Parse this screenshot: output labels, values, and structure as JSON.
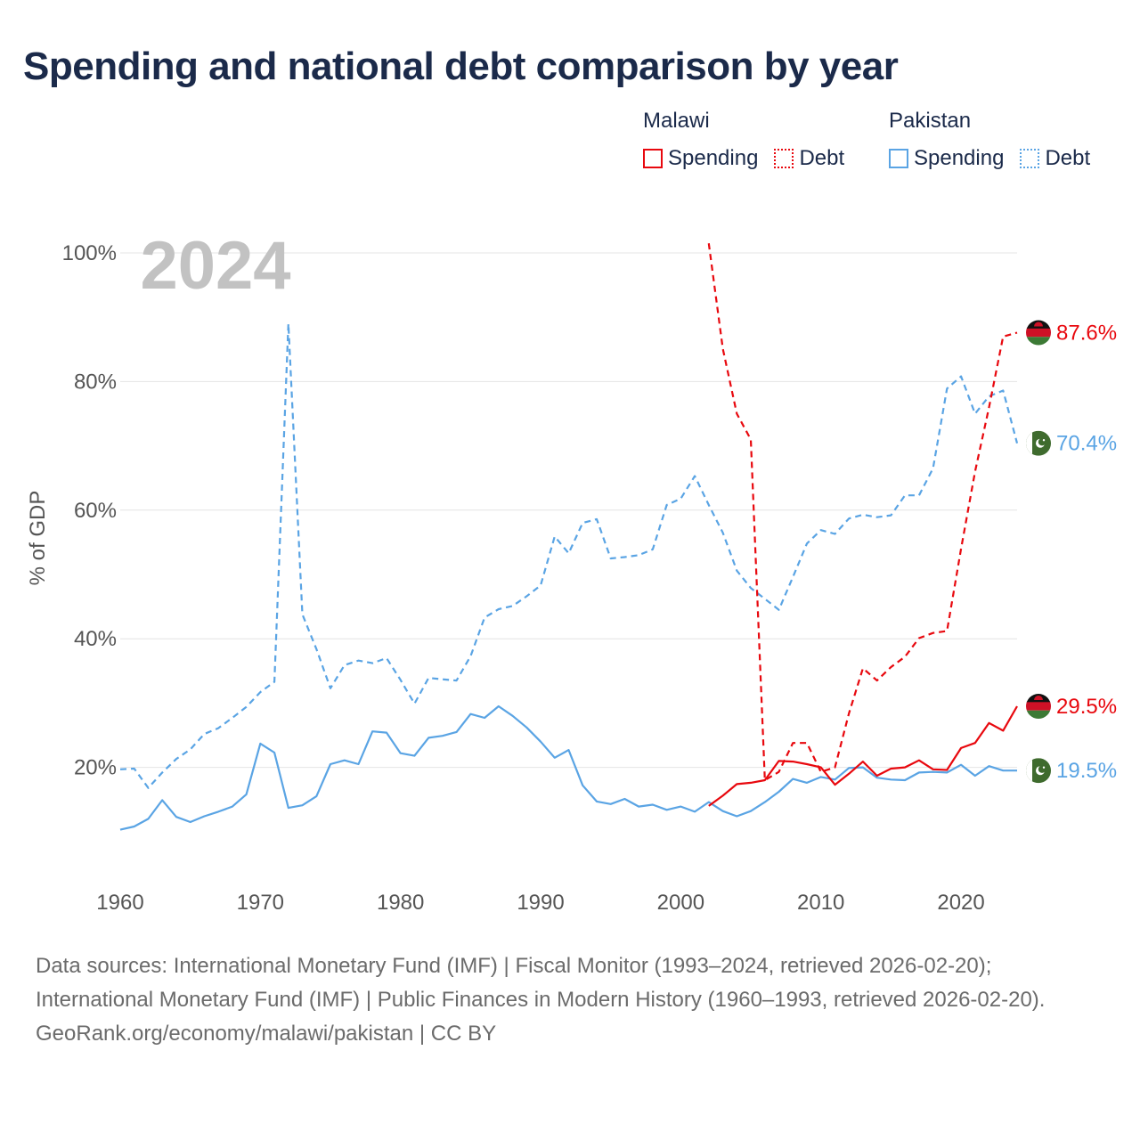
{
  "title": "Spending and national debt comparison by year",
  "legend": {
    "groups": [
      {
        "name": "Malawi",
        "color": "#e8080e",
        "items": [
          {
            "label": "Spending",
            "style": "solid"
          },
          {
            "label": "Debt",
            "style": "dotted"
          }
        ]
      },
      {
        "name": "Pakistan",
        "color": "#5aa4e4",
        "items": [
          {
            "label": "Spending",
            "style": "solid"
          },
          {
            "label": "Debt",
            "style": "dotted"
          }
        ]
      }
    ]
  },
  "year_watermark": "2024",
  "chart_data": {
    "type": "line",
    "ylabel": "% of GDP",
    "xlabel": "",
    "xlim": [
      1960,
      2024
    ],
    "ylim": [
      0,
      100
    ],
    "x_ticks": [
      "1960",
      "1970",
      "1980",
      "1990",
      "2000",
      "2010",
      "2020"
    ],
    "y_ticks": [
      "20%",
      "40%",
      "60%",
      "80%",
      "100%"
    ],
    "series": [
      {
        "name": "Pakistan Debt",
        "country": "Pakistan",
        "metric": "Debt",
        "color": "#5aa4e4",
        "dash": "dashed",
        "x": [
          1960,
          1961,
          1962,
          1963,
          1964,
          1965,
          1966,
          1967,
          1968,
          1969,
          1970,
          1971,
          1972,
          1973,
          1974,
          1975,
          1976,
          1977,
          1978,
          1979,
          1980,
          1981,
          1982,
          1983,
          1984,
          1985,
          1986,
          1987,
          1988,
          1989,
          1990,
          1991,
          1992,
          1993,
          1994,
          1995,
          1996,
          1997,
          1998,
          1999,
          2000,
          2001,
          2002,
          2003,
          2004,
          2005,
          2006,
          2007,
          2008,
          2009,
          2010,
          2011,
          2012,
          2013,
          2014,
          2015,
          2016,
          2017,
          2018,
          2019,
          2020,
          2021,
          2022,
          2023,
          2024
        ],
        "values": [
          19.7,
          19.8,
          16.8,
          19.2,
          21.3,
          22.8,
          25.2,
          26.1,
          27.7,
          29.4,
          31.7,
          33.3,
          89.0,
          43.8,
          38.4,
          32.3,
          35.9,
          36.6,
          36.2,
          37.0,
          33.6,
          29.9,
          33.9,
          33.7,
          33.5,
          37.3,
          43.3,
          44.6,
          45.1,
          46.6,
          48.3,
          55.9,
          53.3,
          58.0,
          58.6,
          52.5,
          52.7,
          53.0,
          53.9,
          60.8,
          61.8,
          65.3,
          60.8,
          56.5,
          50.6,
          47.9,
          46.2,
          44.5,
          49.6,
          54.8,
          56.9,
          56.3,
          58.7,
          59.3,
          58.9,
          59.2,
          62.3,
          62.3,
          66.5,
          78.9,
          80.8,
          75.0,
          77.7,
          78.6,
          70.4
        ],
        "end_label": "70.4%"
      },
      {
        "name": "Pakistan Spending",
        "country": "Pakistan",
        "metric": "Spending",
        "color": "#5aa4e4",
        "dash": "solid",
        "x": [
          1960,
          1961,
          1962,
          1963,
          1964,
          1965,
          1966,
          1967,
          1968,
          1969,
          1970,
          1971,
          1972,
          1973,
          1974,
          1975,
          1976,
          1977,
          1978,
          1979,
          1980,
          1981,
          1982,
          1983,
          1984,
          1985,
          1986,
          1987,
          1988,
          1989,
          1990,
          1991,
          1992,
          1993,
          1994,
          1995,
          1996,
          1997,
          1998,
          1999,
          2000,
          2001,
          2002,
          2003,
          2004,
          2005,
          2006,
          2007,
          2008,
          2009,
          2010,
          2011,
          2012,
          2013,
          2014,
          2015,
          2016,
          2017,
          2018,
          2019,
          2020,
          2021,
          2022,
          2023,
          2024
        ],
        "values": [
          10.3,
          10.8,
          12.0,
          14.9,
          12.3,
          11.5,
          12.4,
          13.1,
          13.9,
          15.8,
          23.7,
          22.3,
          13.7,
          14.1,
          15.5,
          20.5,
          21.1,
          20.5,
          25.6,
          25.4,
          22.2,
          21.8,
          24.6,
          24.9,
          25.5,
          28.3,
          27.7,
          29.5,
          28.0,
          26.2,
          24.0,
          21.5,
          22.7,
          17.2,
          14.7,
          14.3,
          15.1,
          13.9,
          14.2,
          13.4,
          13.9,
          13.1,
          14.6,
          13.2,
          12.4,
          13.2,
          14.6,
          16.2,
          18.2,
          17.6,
          18.5,
          18.1,
          19.9,
          20.0,
          18.4,
          18.1,
          18.0,
          19.2,
          19.3,
          19.2,
          20.4,
          18.7,
          20.2,
          19.5,
          19.5
        ],
        "end_label": "19.5%"
      },
      {
        "name": "Malawi Debt",
        "country": "Malawi",
        "metric": "Debt",
        "color": "#e8080e",
        "dash": "dashed",
        "x": [
          2002,
          2003,
          2004,
          2005,
          2006,
          2007,
          2008,
          2009,
          2010,
          2011,
          2012,
          2013,
          2014,
          2015,
          2016,
          2017,
          2018,
          2019,
          2020,
          2021,
          2022,
          2023,
          2024
        ],
        "values": [
          101.5,
          85.1,
          75.0,
          71.0,
          18.0,
          19.3,
          23.8,
          23.8,
          19.3,
          20.0,
          28.4,
          35.4,
          33.5,
          35.6,
          37.2,
          40.1,
          40.9,
          41.2,
          54.0,
          66.0,
          76.0,
          87.0,
          87.6
        ],
        "end_label": "87.6%"
      },
      {
        "name": "Malawi Spending",
        "country": "Malawi",
        "metric": "Spending",
        "color": "#e8080e",
        "dash": "solid",
        "x": [
          2002,
          2003,
          2004,
          2005,
          2006,
          2007,
          2008,
          2009,
          2010,
          2011,
          2012,
          2013,
          2014,
          2015,
          2016,
          2017,
          2018,
          2019,
          2020,
          2021,
          2022,
          2023,
          2024
        ],
        "values": [
          14.0,
          15.6,
          17.4,
          17.6,
          18.0,
          21.0,
          20.9,
          20.5,
          20.0,
          17.3,
          19.0,
          20.9,
          18.7,
          19.8,
          20.0,
          21.1,
          19.7,
          19.6,
          23.0,
          23.8,
          26.9,
          25.7,
          29.5
        ],
        "end_label": "29.5%"
      }
    ]
  },
  "footer": {
    "sources": "Data sources: International Monetary Fund (IMF) | Fiscal Monitor (1993–2024, retrieved 2026-02-20); International Monetary Fund (IMF) | Public Finances in Modern History (1960–1993, retrieved 2026-02-20).",
    "credit": "GeoRank.org/economy/malawi/pakistan | CC BY"
  }
}
